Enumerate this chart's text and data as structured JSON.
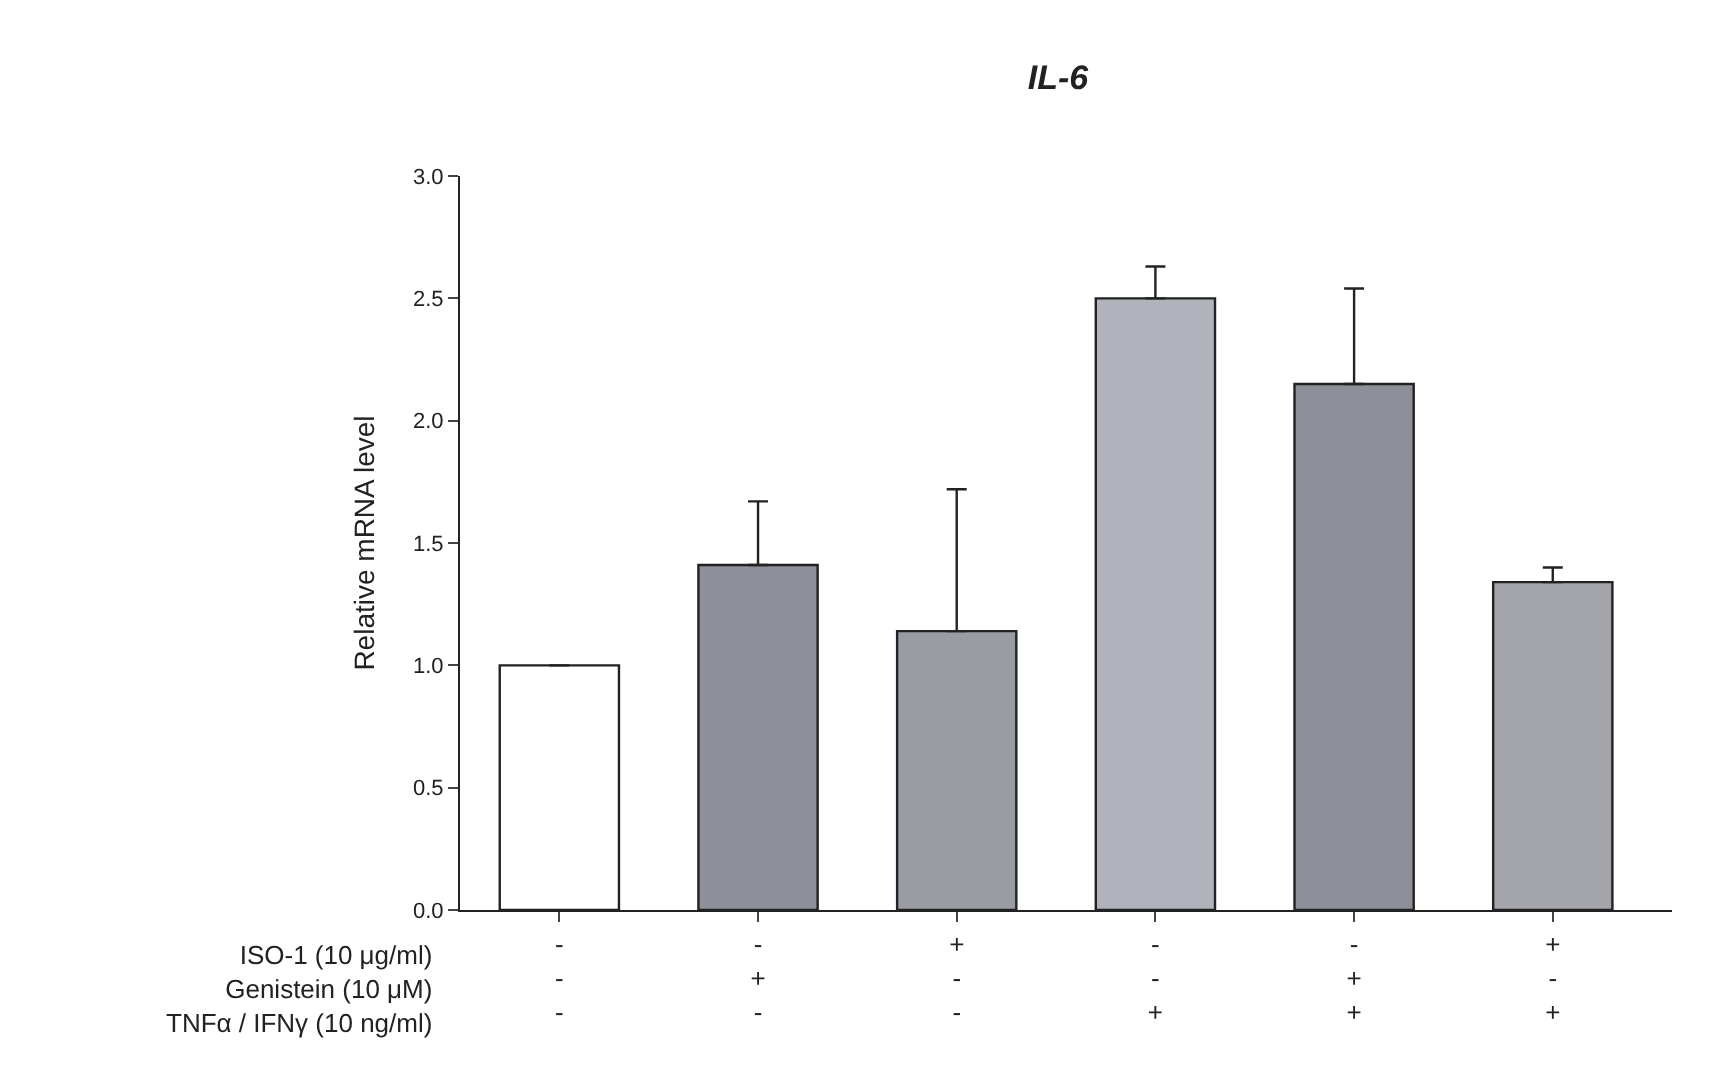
{
  "chart_data": {
    "type": "bar",
    "title": "IL-6",
    "ylabel": "Relative mRNA level",
    "categories": [
      "-\n-\n-",
      "-\n+\n-",
      "+\n-\n-",
      "-\n-\n+",
      "-\n+\n+",
      "+\n-\n+"
    ],
    "values": [
      1.0,
      1.41,
      1.14,
      2.5,
      2.15,
      1.34
    ],
    "errors": [
      null,
      0.26,
      0.58,
      0.13,
      0.39,
      0.06
    ],
    "colors": [
      "#ffffff",
      "#8e9099",
      "#9a9ca4",
      "#b0b3bb",
      "#8e9099",
      "#a3a5ab"
    ],
    "ylim": [
      0,
      3.0
    ],
    "yticks": [
      {
        "value": 0,
        "label": "0.0"
      },
      0.5,
      {
        "value": 1,
        "label": "1.0"
      },
      1.5,
      {
        "value": 2,
        "label": "2.0"
      },
      2.5,
      {
        "value": 3,
        "label": "3.0"
      }
    ],
    "annotations": [
      "ISO-1 (10 μg/ml)\nGenistein (10 μM)\nTNFα / IFNγ (10 ng/ml)"
    ]
  }
}
